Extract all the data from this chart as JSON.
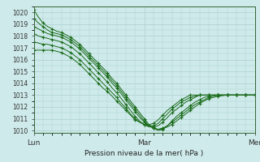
{
  "bg_color": "#ceeaea",
  "grid_color": "#aed0d0",
  "line_color": "#1a6b1a",
  "ylim": [
    1009.8,
    1020.5
  ],
  "yticks": [
    1010,
    1011,
    1012,
    1013,
    1014,
    1015,
    1016,
    1017,
    1018,
    1019,
    1020
  ],
  "xlabel": "Pression niveau de la mer( hPa )",
  "xtick_labels": [
    "Lun",
    "Mar",
    "Mer"
  ],
  "xtick_positions": [
    0,
    24,
    48
  ],
  "num_hours": 49,
  "series": [
    [
      1020.2,
      1019.6,
      1019.1,
      1018.8,
      1018.6,
      1018.4,
      1018.3,
      1018.1,
      1017.9,
      1017.6,
      1017.3,
      1016.9,
      1016.5,
      1016.1,
      1015.7,
      1015.3,
      1014.9,
      1014.4,
      1014.0,
      1013.5,
      1013.0,
      1012.5,
      1012.0,
      1011.5,
      1011.0,
      1010.5,
      1010.2,
      1010.1,
      1010.15,
      1010.3,
      1010.5,
      1010.8,
      1011.1,
      1011.4,
      1011.7,
      1012.0,
      1012.3,
      1012.5,
      1012.7,
      1012.8,
      1012.9,
      1012.95,
      1013.0,
      1013.0,
      1013.0,
      1013.0,
      1013.0,
      1013.0,
      1013.0
    ],
    [
      1019.5,
      1019.1,
      1018.8,
      1018.5,
      1018.3,
      1018.2,
      1018.1,
      1017.9,
      1017.7,
      1017.4,
      1017.1,
      1016.7,
      1016.3,
      1015.9,
      1015.5,
      1015.1,
      1014.7,
      1014.2,
      1013.8,
      1013.3,
      1012.8,
      1012.3,
      1011.8,
      1011.3,
      1010.8,
      1010.4,
      1010.2,
      1010.1,
      1010.2,
      1010.4,
      1010.7,
      1011.0,
      1011.3,
      1011.6,
      1011.9,
      1012.2,
      1012.4,
      1012.6,
      1012.8,
      1012.9,
      1013.0,
      1013.0,
      1013.0,
      1013.0,
      1013.0,
      1013.0,
      1013.0,
      1013.0,
      1013.0
    ],
    [
      1018.8,
      1018.6,
      1018.4,
      1018.2,
      1018.1,
      1018.0,
      1017.9,
      1017.7,
      1017.5,
      1017.2,
      1016.9,
      1016.5,
      1016.1,
      1015.7,
      1015.3,
      1014.9,
      1014.5,
      1014.0,
      1013.6,
      1013.1,
      1012.6,
      1012.1,
      1011.6,
      1011.1,
      1010.7,
      1010.4,
      1010.2,
      1010.0,
      1010.1,
      1010.4,
      1010.8,
      1011.2,
      1011.5,
      1011.8,
      1012.1,
      1012.4,
      1012.6,
      1012.8,
      1012.9,
      1013.0,
      1013.0,
      1013.0,
      1013.0,
      1013.0,
      1013.0,
      1013.0,
      1013.0,
      1013.0,
      1013.0
    ],
    [
      1018.2,
      1018.0,
      1017.9,
      1017.8,
      1017.7,
      1017.6,
      1017.5,
      1017.3,
      1017.1,
      1016.8,
      1016.5,
      1016.1,
      1015.7,
      1015.3,
      1014.9,
      1014.5,
      1014.1,
      1013.6,
      1013.2,
      1012.7,
      1012.2,
      1011.7,
      1011.2,
      1010.8,
      1010.5,
      1010.3,
      1010.3,
      1010.4,
      1010.7,
      1011.1,
      1011.5,
      1011.8,
      1012.1,
      1012.4,
      1012.6,
      1012.8,
      1013.0,
      1013.0,
      1013.0,
      1013.0,
      1013.0,
      1013.0,
      1013.0,
      1013.0,
      1013.0,
      1013.0,
      1013.0,
      1013.0,
      1013.0
    ],
    [
      1017.5,
      1017.4,
      1017.3,
      1017.3,
      1017.2,
      1017.1,
      1017.0,
      1016.8,
      1016.6,
      1016.3,
      1016.0,
      1015.6,
      1015.2,
      1014.8,
      1014.4,
      1014.0,
      1013.6,
      1013.2,
      1012.8,
      1012.3,
      1011.9,
      1011.4,
      1011.0,
      1010.7,
      1010.5,
      1010.4,
      1010.4,
      1010.6,
      1011.0,
      1011.4,
      1011.8,
      1012.1,
      1012.4,
      1012.6,
      1012.8,
      1012.9,
      1013.0,
      1013.0,
      1013.0,
      1013.0,
      1013.0,
      1013.0,
      1013.0,
      1013.0,
      1013.0,
      1013.0,
      1013.0,
      1013.0,
      1013.0
    ],
    [
      1016.8,
      1016.8,
      1016.8,
      1016.8,
      1016.8,
      1016.7,
      1016.6,
      1016.4,
      1016.2,
      1015.9,
      1015.6,
      1015.2,
      1014.8,
      1014.4,
      1014.0,
      1013.6,
      1013.3,
      1012.9,
      1012.5,
      1012.1,
      1011.7,
      1011.3,
      1010.9,
      1010.7,
      1010.5,
      1010.5,
      1010.6,
      1010.9,
      1011.3,
      1011.7,
      1012.0,
      1012.3,
      1012.6,
      1012.8,
      1013.0,
      1013.0,
      1013.0,
      1013.0,
      1013.0,
      1013.0,
      1013.0,
      1013.0,
      1013.0,
      1013.0,
      1013.0,
      1013.0,
      1013.0,
      1013.0,
      1013.0
    ]
  ]
}
